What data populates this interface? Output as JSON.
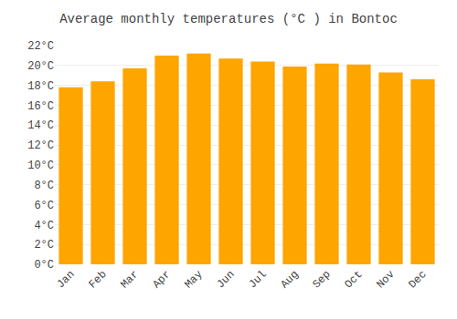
{
  "chart_data": {
    "type": "bar",
    "title": "Average monthly temperatures (°C ) in Bontoc",
    "categories": [
      "Jan",
      "Feb",
      "Mar",
      "Apr",
      "May",
      "Jun",
      "Jul",
      "Aug",
      "Sep",
      "Oct",
      "Nov",
      "Dec"
    ],
    "values": [
      17.8,
      18.4,
      19.7,
      21.0,
      21.2,
      20.7,
      20.4,
      19.9,
      20.2,
      20.1,
      19.3,
      18.6
    ],
    "color": "#FFA500",
    "ylim": [
      0,
      22
    ],
    "yticks": [
      {
        "value": 0,
        "label": "0°C"
      },
      {
        "value": 2,
        "label": "2°C"
      },
      {
        "value": 4,
        "label": "4°C"
      },
      {
        "value": 6,
        "label": "6°C"
      },
      {
        "value": 8,
        "label": "8°C"
      },
      {
        "value": 10,
        "label": "10°C"
      },
      {
        "value": 12,
        "label": "12°C"
      },
      {
        "value": 14,
        "label": "14°C"
      },
      {
        "value": 16,
        "label": "16°C"
      },
      {
        "value": 18,
        "label": "18°C"
      },
      {
        "value": 20,
        "label": "20°C"
      },
      {
        "value": 22,
        "label": "22°C"
      }
    ],
    "grid": true
  }
}
